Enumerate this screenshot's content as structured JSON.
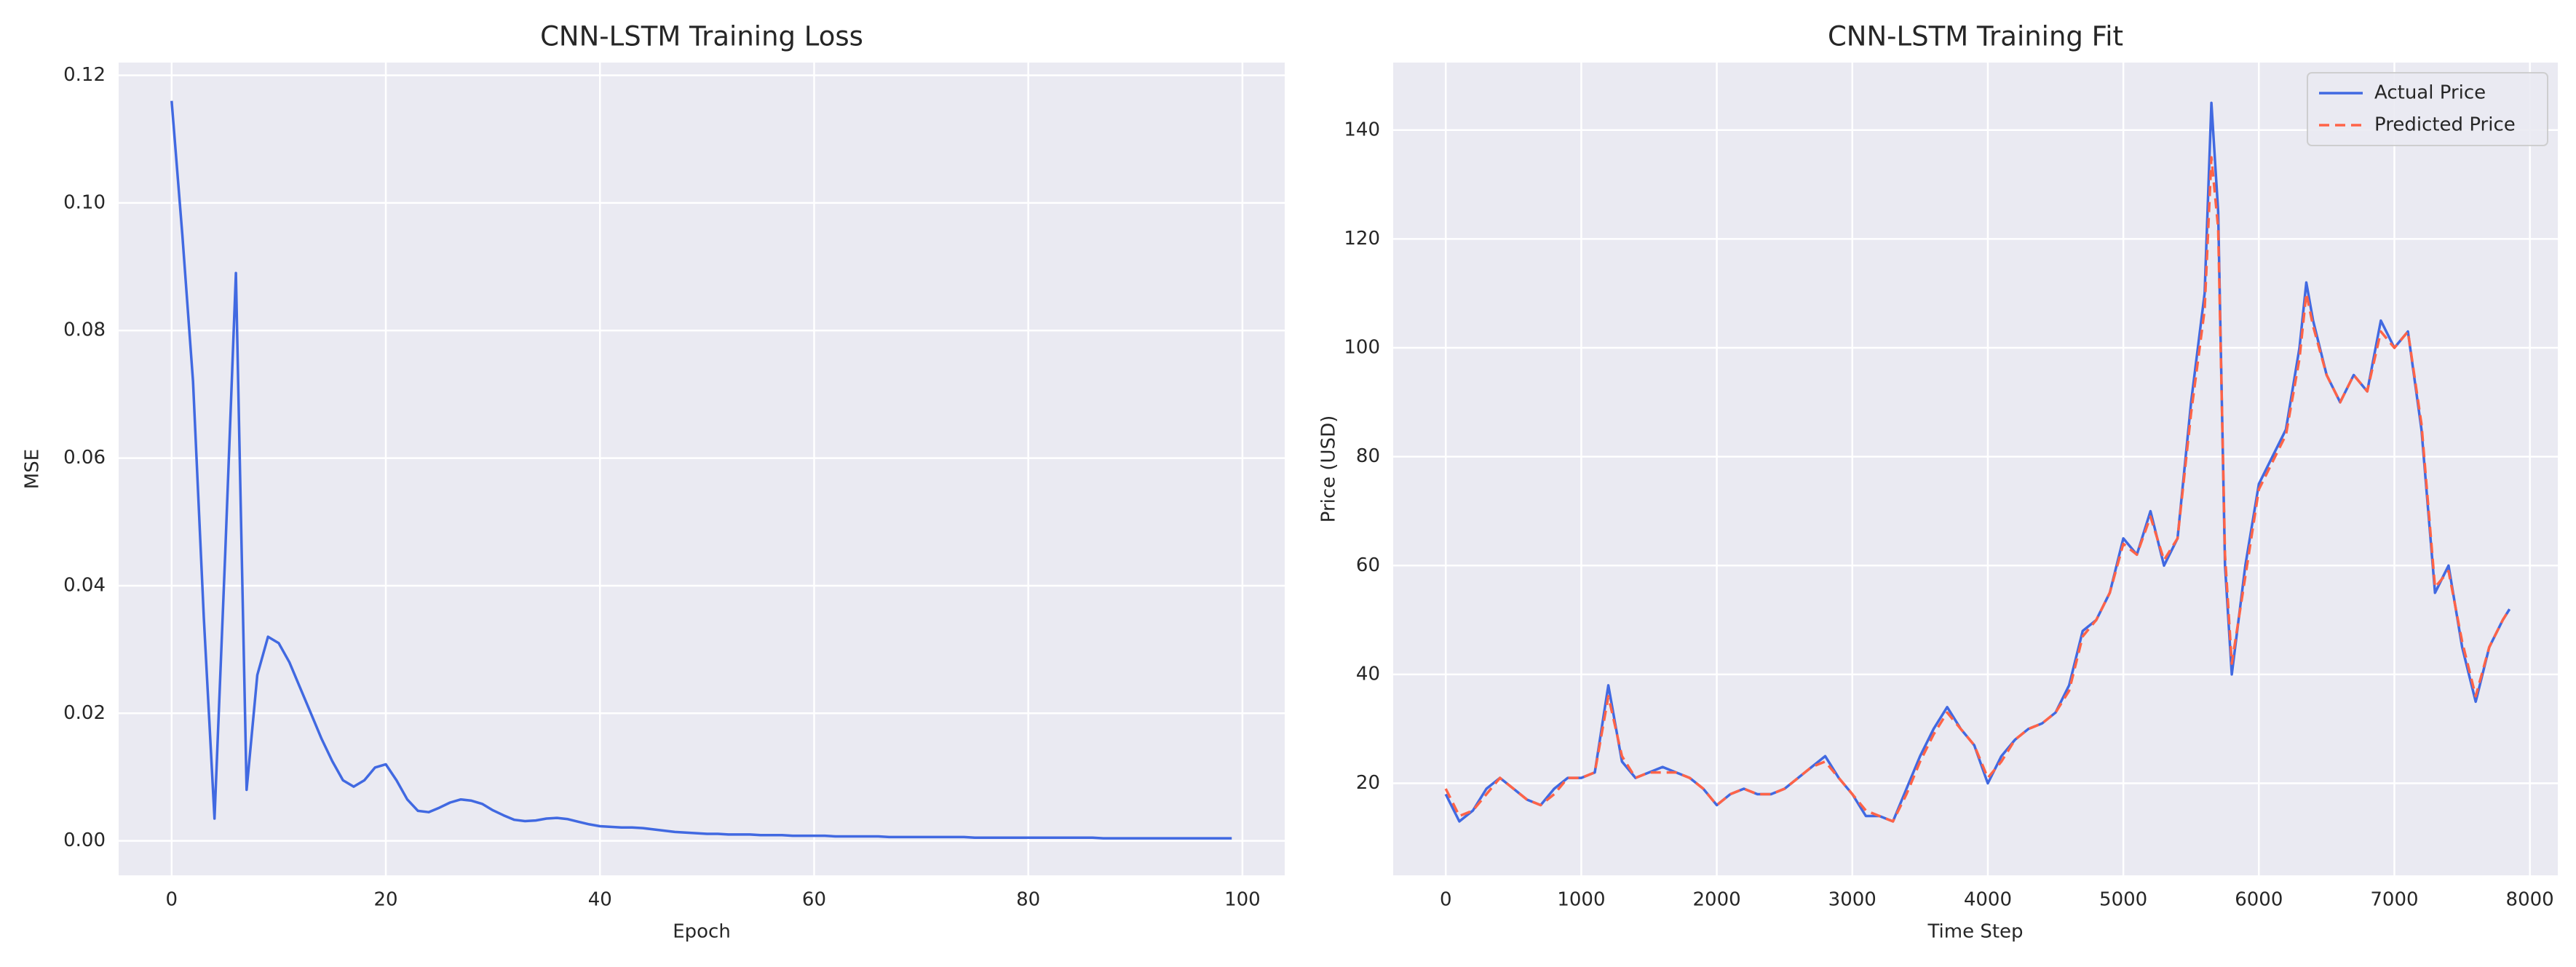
{
  "chart_data": [
    {
      "type": "line",
      "title": "CNN-LSTM Training Loss",
      "x_label": "Epoch",
      "y_label": "MSE",
      "x": [
        0,
        1,
        2,
        3,
        4,
        5,
        6,
        7,
        8,
        9,
        10,
        11,
        12,
        13,
        14,
        15,
        16,
        17,
        18,
        19,
        20,
        21,
        22,
        23,
        24,
        25,
        26,
        27,
        28,
        29,
        30,
        31,
        32,
        33,
        34,
        35,
        36,
        37,
        38,
        39,
        40,
        41,
        42,
        43,
        44,
        45,
        46,
        47,
        48,
        49,
        50,
        51,
        52,
        53,
        54,
        55,
        56,
        57,
        58,
        59,
        60,
        61,
        62,
        63,
        64,
        65,
        66,
        67,
        68,
        69,
        70,
        71,
        72,
        73,
        74,
        75,
        76,
        77,
        78,
        79,
        80,
        81,
        82,
        83,
        84,
        85,
        86,
        87,
        88,
        89,
        90,
        91,
        92,
        93,
        94,
        95,
        96,
        97,
        98,
        99
      ],
      "values": [
        0.116,
        0.095,
        0.072,
        0.035,
        0.0035,
        0.045,
        0.089,
        0.008,
        0.026,
        0.032,
        0.031,
        0.028,
        0.024,
        0.02,
        0.016,
        0.0125,
        0.0095,
        0.0085,
        0.0095,
        0.0115,
        0.012,
        0.0095,
        0.0065,
        0.0047,
        0.0045,
        0.0052,
        0.006,
        0.0065,
        0.0063,
        0.0058,
        0.0048,
        0.004,
        0.0033,
        0.0031,
        0.0032,
        0.0035,
        0.0036,
        0.0034,
        0.003,
        0.0026,
        0.0023,
        0.0022,
        0.0021,
        0.0021,
        0.002,
        0.0018,
        0.0016,
        0.0014,
        0.0013,
        0.0012,
        0.0011,
        0.0011,
        0.001,
        0.001,
        0.001,
        0.0009,
        0.0009,
        0.0009,
        0.0008,
        0.0008,
        0.0008,
        0.0008,
        0.0007,
        0.0007,
        0.0007,
        0.0007,
        0.0007,
        0.0006,
        0.0006,
        0.0006,
        0.0006,
        0.0006,
        0.0006,
        0.0006,
        0.0006,
        0.0005,
        0.0005,
        0.0005,
        0.0005,
        0.0005,
        0.0005,
        0.0005,
        0.0005,
        0.0005,
        0.0005,
        0.0005,
        0.0005,
        0.0004,
        0.0004,
        0.0004,
        0.0004,
        0.0004,
        0.0004,
        0.0004,
        0.0004,
        0.0004,
        0.0004,
        0.0004,
        0.0004,
        0.0004
      ],
      "color": "#4169e1",
      "xlim": [
        -4.95,
        103.95
      ],
      "ylim": [
        -0.0054,
        0.122
      ],
      "xticks": [
        0,
        20,
        40,
        60,
        80,
        100
      ],
      "yticks": [
        {
          "value": 0,
          "label": "0.00"
        },
        {
          "value": 0.02,
          "label": "0.02"
        },
        {
          "value": 0.04,
          "label": "0.04"
        },
        {
          "value": 0.06,
          "label": "0.06"
        },
        {
          "value": 0.08,
          "label": "0.08"
        },
        {
          "value": 0.1,
          "label": "0.10"
        },
        {
          "value": 0.12,
          "label": "0.12"
        }
      ],
      "grid": true
    },
    {
      "type": "line",
      "title": "CNN-LSTM Training Fit",
      "x_label": "Time Step",
      "y_label": "Price (USD)",
      "x": [
        0,
        100,
        200,
        300,
        400,
        500,
        600,
        700,
        800,
        900,
        1000,
        1100,
        1200,
        1300,
        1400,
        1500,
        1600,
        1700,
        1800,
        1900,
        2000,
        2100,
        2200,
        2300,
        2400,
        2500,
        2600,
        2700,
        2800,
        2900,
        3000,
        3100,
        3200,
        3300,
        3400,
        3500,
        3600,
        3700,
        3800,
        3900,
        4000,
        4100,
        4200,
        4300,
        4400,
        4500,
        4600,
        4700,
        4800,
        4900,
        5000,
        5100,
        5200,
        5300,
        5400,
        5500,
        5600,
        5650,
        5700,
        5750,
        5800,
        5900,
        6000,
        6100,
        6200,
        6300,
        6350,
        6400,
        6500,
        6600,
        6700,
        6800,
        6900,
        7000,
        7100,
        7200,
        7300,
        7400,
        7500,
        7600,
        7700,
        7800,
        7850
      ],
      "series": [
        {
          "name": "Actual Price",
          "color": "#4169e1",
          "dash": false,
          "values": [
            18,
            13,
            15,
            19,
            21,
            19,
            17,
            16,
            19,
            21,
            21,
            22,
            38,
            24,
            21,
            22,
            23,
            22,
            21,
            19,
            16,
            18,
            19,
            18,
            18,
            19,
            21,
            23,
            25,
            21,
            18,
            14,
            14,
            13,
            19,
            25,
            30,
            34,
            30,
            27,
            20,
            25,
            28,
            30,
            31,
            33,
            38,
            48,
            50,
            55,
            65,
            62,
            70,
            60,
            65,
            90,
            110,
            145,
            125,
            60,
            40,
            60,
            75,
            80,
            85,
            100,
            112,
            105,
            95,
            90,
            95,
            92,
            105,
            100,
            103,
            85,
            55,
            60,
            45,
            35,
            45,
            50,
            52
          ]
        },
        {
          "name": "Predicted Price",
          "color": "#ff6347",
          "dash": true,
          "values": [
            19,
            14,
            15,
            18,
            21,
            19,
            17,
            16,
            18,
            21,
            21,
            22,
            36,
            25,
            21,
            22,
            22,
            22,
            21,
            19,
            16,
            18,
            19,
            18,
            18,
            19,
            21,
            23,
            24,
            21,
            18,
            15,
            14,
            13,
            18,
            24,
            29,
            33,
            30,
            27,
            21,
            24,
            28,
            30,
            31,
            33,
            37,
            47,
            50,
            55,
            64,
            62,
            69,
            61,
            65,
            88,
            107,
            135,
            122,
            62,
            42,
            58,
            74,
            79,
            84,
            98,
            110,
            104,
            95,
            90,
            95,
            92,
            103,
            100,
            103,
            86,
            56,
            59,
            46,
            36,
            45,
            50,
            52
          ]
        }
      ],
      "legend": "upper right",
      "xlim": [
        -388,
        8206
      ],
      "ylim": [
        3.1,
        152.4
      ],
      "xticks": [
        0,
        1000,
        2000,
        3000,
        4000,
        5000,
        6000,
        7000,
        8000
      ],
      "yticks": [
        20,
        40,
        60,
        80,
        100,
        120,
        140
      ],
      "grid": true
    }
  ]
}
